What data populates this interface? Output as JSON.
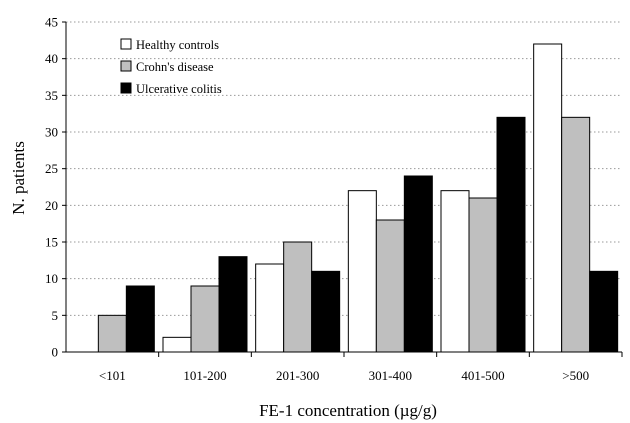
{
  "chart_data": {
    "type": "bar",
    "categories": [
      "<101",
      "101-200",
      "201-300",
      "301-400",
      "401-500",
      ">500"
    ],
    "series": [
      {
        "name": "Healthy controls",
        "values": [
          0,
          2,
          12,
          22,
          22,
          42
        ],
        "color": "#ffffff"
      },
      {
        "name": "Crohn's disease",
        "values": [
          5,
          9,
          15,
          18,
          21,
          32
        ],
        "color": "#bfbfbf"
      },
      {
        "name": "Ulcerative colitis",
        "values": [
          9,
          13,
          11,
          24,
          32,
          11
        ],
        "color": "#000000"
      }
    ],
    "xlabel": "FE-1 concentration (µg/g)",
    "ylabel": "N. patients",
    "ylim": [
      0,
      45
    ],
    "yticks": [
      0,
      5,
      10,
      15,
      20,
      25,
      30,
      35,
      40,
      45
    ],
    "grid": true,
    "legend_position": "top-left"
  }
}
